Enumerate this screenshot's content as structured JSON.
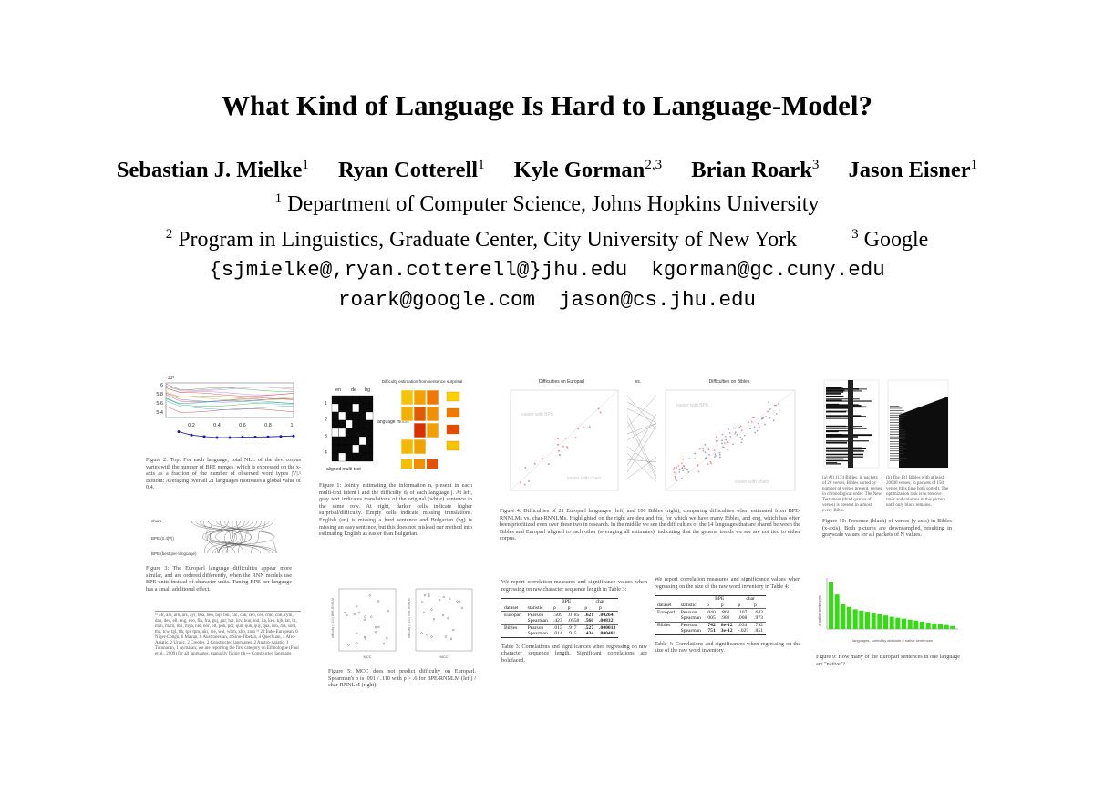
{
  "paper": {
    "title": "What Kind of Language Is Hard to Language-Model?",
    "authors": [
      {
        "name": "Sebastian J. Mielke",
        "sup": "1"
      },
      {
        "name": "Ryan Cotterell",
        "sup": "1"
      },
      {
        "name": "Kyle Gorman",
        "sup": "2,3"
      },
      {
        "name": "Brian Roark",
        "sup": "3"
      },
      {
        "name": "Jason Eisner",
        "sup": "1"
      }
    ],
    "affiliations": [
      {
        "sup": "1",
        "text": "Department of Computer Science, Johns Hopkins University"
      },
      {
        "sup": "2",
        "text": "Program in Linguistics, Graduate Center, City University of New York"
      },
      {
        "sup": "3",
        "text": "Google"
      }
    ],
    "emails": [
      "{sjmielke@,ryan.cotterell@}jhu.edu",
      "kgorman@gc.cuny.edu",
      "roark@google.com",
      "jason@cs.jhu.edu"
    ]
  },
  "figures": {
    "fig2": {
      "axis_power": "·10⁵",
      "y_ticks": [
        "6",
        "5.8",
        "5.6",
        "5.4"
      ],
      "x_ticks": [
        "0.2",
        "0.4",
        "0.6",
        "0.8",
        "1"
      ],
      "caption": "Figure 2: Top: For each language, total NLL of the dev corpus varies with the number of BPE merges, which is expressed on the x-axis as a fraction of the number of observed word types |V|.¹ Bottom: Averaging over all 21 languages motivates a global value of 0.4."
    },
    "fig3": {
      "labels": [
        "chars",
        "BPE (0.4|V|)",
        "BPE (best per-language)"
      ],
      "caption": "Figure 3: The Europarl language difficulties appear more similar, and are ordered differently, when the RNN models use BPE units instead of character units. Tuning BPE per-language has a small additional effect."
    },
    "footnote": "¹² afr, aln, arb, arz, ayr, bba, ben, bql, bul, cac, cak, ceb, ces, cmn, cnh, cym, dan, deu, ell, eng, epo, fin, fra, guj, gur, hat, hrv, hun, ind, ita, kek, kjb, lat, lit, mah, mam, mri, mya, nld, nor, plt, poh, por, qub, quh, quy, quz, ron, rus, som, tbz, tcw, tgl, tlh, tpi, tpm, ukr, vie, wal, wbm, xho, zom ¹³ 22 Indo-European, 6 Niger-Congo, 6 Mayan, 6 Austronesian, 4 Sino-Tibetan, 4 Quechuan, 4 Afro-Asiatic, 2 Uralic, 2 Creoles, 2 Constructed languages, 2 Austro-Asiatic, 1 Totonacan, 1 Aymaran; we are reporting the first category on Ethnologue (Paul et al., 2009) for all languages, manually fixing tlh ↦ Constructed language.",
    "fig1": {
      "lang_headers": [
        "en",
        "de",
        "bg"
      ],
      "row_labels": [
        "1",
        "2",
        "3",
        "4"
      ],
      "model_label": "language model",
      "grid_label": "aligned multi-text",
      "difficulty_title": "Difficulty estimation from sentence surprisal",
      "caption": "Figure 1: Jointly estimating the information nᵢ present in each multi-text intent i and the difficulty dⱼ of each language j. At left, gray text indicates translations of the original (white) sentence in the same row. At right, darker cells indicate higher surprisal/difficulty. Empty cells indicate missing translations. English (en) is missing a hard sentence and Bulgarian (bg) is missing an easy sentence, but this does not mislead our method into estimating English as easier than Bulgarian."
    },
    "fig5": {
      "caption": "Figure 5: MCC does not predict difficulty on Europarl. Spearman's ρ is .091 / .110 with p > .6 for BPE-RNNLM (left) / char-RNNLM (right).",
      "x_label": "MCC",
      "y_labels": [
        "difficulty (×100) BPE-RNNLM",
        "difficulty (×100) char-RNNLM"
      ]
    },
    "fig4": {
      "title_left": "Difficulties on Europarl",
      "title_vs": "vs.",
      "title_right": "Difficulties on Bibles",
      "easier_bpe": "easier with BPE",
      "easier_chars": "easier with chars",
      "caption": "Figure 4: Difficulties of 21 Europarl languages (left) and 106 Bibles (right), comparing difficulties when estimated from BPE-RNNLMs vs. char-RNNLMs. Highlighted on the right are deu and fra, for which we have many Bibles, and eng, which has often been prioritized even over these two in research. In the middle we see the difficulties of the 14 languages that are shared between the Bibles and Europarl aligned to each other (averaging all estimates), indicating that the general trends we see are not tied to either corpus."
    },
    "table3": {
      "intro": "We report correlation measures and significance values when regressing on raw character sequence length in Table 3:",
      "unit_headers": [
        "BPE",
        "char"
      ],
      "col_headers": [
        "dataset",
        "statistic",
        "ρ",
        "p",
        "ρ",
        "p"
      ],
      "rows": [
        [
          "Europarl",
          "Pearson",
          ".509",
          ".0185",
          ".621",
          ".00264"
        ],
        [
          "",
          "Spearman",
          ".423",
          ".0558",
          ".560",
          ".00832"
        ],
        [
          "Bibles",
          "Pearson",
          ".015",
          ".917",
          ".527",
          ".000013"
        ],
        [
          "",
          "Spearman",
          ".014",
          ".915",
          ".434",
          ".000481"
        ]
      ],
      "caption": "Table 3: Correlations and significances when regressing on raw character sequence length. Significant correlations are boldfaced."
    },
    "table4": {
      "intro": "We report correlation measures and significance values when regressing on the size of the raw word inventory in Table 4:",
      "unit_headers": [
        "BPE",
        "char"
      ],
      "col_headers": [
        "dataset",
        "statistic",
        "ρ",
        "p",
        "ρ",
        "p"
      ],
      "rows": [
        [
          "Europarl",
          "Pearson",
          ".040",
          ".862",
          ".107",
          ".643"
        ],
        [
          "",
          "Spearman",
          ".005",
          ".982",
          ".008",
          ".973"
        ],
        [
          "Bibles",
          "Pearson",
          ".742",
          "8e-12",
          ".034",
          ".792"
        ],
        [
          "",
          "Spearman",
          ".751",
          "3e-12",
          "-.025",
          ".851"
        ]
      ],
      "caption": "Table 4: Correlations and significances when regressing on the size of the raw word inventory."
    },
    "fig10": {
      "caption_a": "(a) All 1174 Bibles, in packets of 20 verses, Bibles sorted by number of verses present, verses in chronological order. The New Testament (third quarter of verses) is present in almost every Bible.",
      "caption_b": "(b) The 131 Bibles with at least 20000 verses, in packets of 150 verses (this time both sorted). The optimization task is to remove rows and columns in this picture until only black remains.",
      "caption": "Figure 10: Presence (black) of verses (y-axis) in Bibles (x-axis). Both pictures are downsampled, resulting in grayscale values for all packets of N values."
    },
    "fig9": {
      "y_label": "# native sentences",
      "x_label": "languages, sorted by absolute # native sentences",
      "caption": "Figure 9: How many of the Europarl sentences in one language are \"native\"?",
      "color": "#33dd11"
    }
  },
  "chart_data": [
    {
      "type": "line",
      "x": [
        0.1,
        0.2,
        0.3,
        0.4,
        0.5,
        0.6,
        0.7,
        0.8,
        0.9,
        1.0
      ],
      "series": [
        {
          "values": [
            5.95,
            5.72,
            5.62,
            5.55,
            5.55,
            5.57,
            5.58,
            5.6,
            5.63,
            5.66
          ]
        }
      ],
      "ylim": [
        5.3,
        6.05
      ],
      "xlim": [
        0,
        1
      ]
    },
    {
      "type": "bar",
      "values": [
        19,
        14,
        10,
        9,
        8,
        7.5,
        7,
        6.5,
        6,
        5.5,
        5,
        4.6,
        4.2,
        3.8,
        3.4,
        3,
        2.6,
        2.3,
        2,
        1.6,
        1.2
      ],
      "ylim": [
        0,
        20
      ]
    }
  ]
}
